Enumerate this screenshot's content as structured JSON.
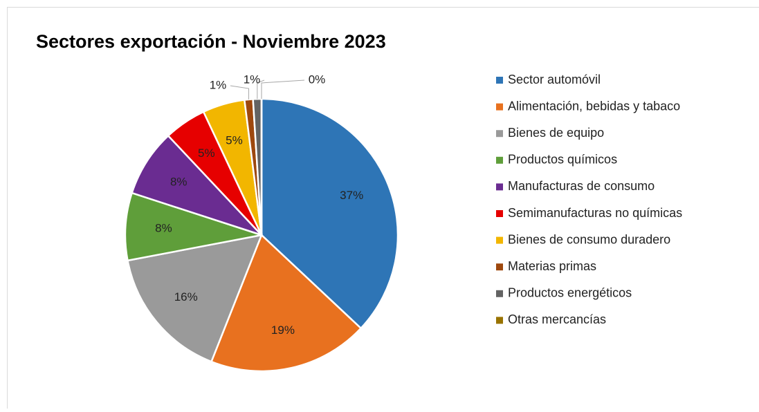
{
  "chart_data": {
    "type": "pie",
    "title": "Sectores exportación - Noviembre 2023",
    "categories": [
      "Sector automóvil",
      "Alimentación, bebidas y tabaco",
      "Bienes de equipo",
      "Productos químicos",
      "Manufacturas de consumo",
      "Semimanufacturas no químicas",
      "Bienes de consumo duradero",
      "Materias primas",
      "Productos energéticos",
      "Otras mercancías"
    ],
    "values": [
      37,
      19,
      16,
      8,
      8,
      5,
      5,
      1,
      1,
      0
    ],
    "value_labels": [
      "37%",
      "19%",
      "16%",
      "8%",
      "8%",
      "5%",
      "5%",
      "1%",
      "1%",
      "0%"
    ],
    "colors": [
      "#2e75b6",
      "#e8711f",
      "#9a9a9a",
      "#5f9e3a",
      "#6a2c91",
      "#e60000",
      "#f2b600",
      "#9e480e",
      "#636363",
      "#997300"
    ],
    "legend": "right"
  }
}
